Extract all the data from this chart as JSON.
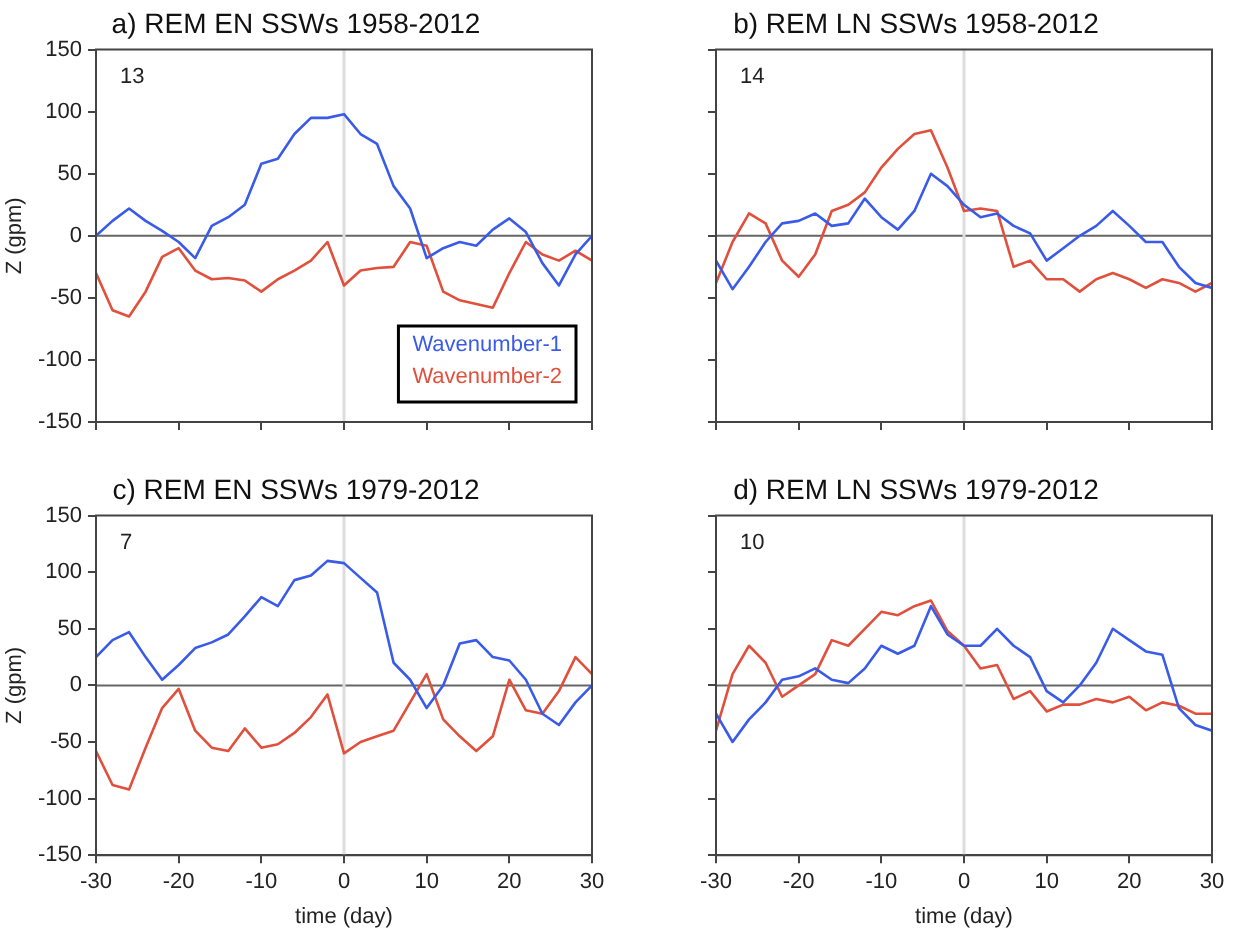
{
  "chart_data": [
    {
      "type": "line",
      "title": "a) REM EN SSWs 1958-2012",
      "ylabel": "Z (gpm)",
      "annotations": [
        "13"
      ],
      "x": [
        -30,
        -28,
        -26,
        -24,
        -22,
        -20,
        -18,
        -16,
        -14,
        -12,
        -10,
        -8,
        -6,
        -4,
        -2,
        0,
        2,
        4,
        6,
        8,
        10,
        12,
        14,
        16,
        18,
        20,
        22,
        24,
        26,
        28,
        30
      ],
      "series": [
        {
          "name": "Wavenumber-1",
          "color": "#3a5be8",
          "values": [
            0,
            12,
            22,
            12,
            4,
            -5,
            -18,
            8,
            15,
            25,
            58,
            62,
            82,
            95,
            95,
            98,
            82,
            74,
            40,
            22,
            -18,
            -10,
            -5,
            -8,
            5,
            14,
            3,
            -22,
            -40,
            -15,
            0
          ]
        },
        {
          "name": "Wavenumber-2",
          "color": "#e0503c",
          "values": [
            -30,
            -60,
            -65,
            -45,
            -17,
            -10,
            -28,
            -35,
            -34,
            -36,
            -45,
            -35,
            -28,
            -20,
            -5,
            -40,
            -28,
            -26,
            -25,
            -5,
            -8,
            -45,
            -52,
            -55,
            -58,
            -30,
            -5,
            -15,
            -20,
            -12,
            -20
          ]
        }
      ],
      "xlim": [
        -30,
        30
      ],
      "xticks": [
        -30,
        -20,
        -10,
        0,
        10,
        20,
        30
      ],
      "ylim": [
        -150,
        150
      ],
      "yticks": [
        -150,
        -100,
        -50,
        0,
        50,
        100,
        150
      ],
      "ref_lines": [
        {
          "axis": "y",
          "value": 0,
          "color": "#666666"
        },
        {
          "axis": "x",
          "value": 0,
          "color": "#dddddd"
        }
      ],
      "legend": "bottom right",
      "tick_labels": "y",
      "grid": false,
      "marker": "none"
    },
    {
      "type": "line",
      "title": "b) REM LN SSWs 1958-2012",
      "annotations": [
        "14"
      ],
      "x": [
        -30,
        -28,
        -26,
        -24,
        -22,
        -20,
        -18,
        -16,
        -14,
        -12,
        -10,
        -8,
        -6,
        -4,
        -2,
        0,
        2,
        4,
        6,
        8,
        10,
        12,
        14,
        16,
        18,
        20,
        22,
        24,
        26,
        28,
        30
      ],
      "series": [
        {
          "color": "#3a5be8",
          "values": [
            -20,
            -43,
            -25,
            -5,
            10,
            12,
            18,
            8,
            10,
            30,
            15,
            5,
            20,
            50,
            40,
            25,
            15,
            18,
            8,
            2,
            -20,
            -10,
            0,
            8,
            20,
            8,
            -5,
            -5,
            -25,
            -38,
            -42
          ]
        },
        {
          "color": "#e0503c",
          "values": [
            -38,
            -5,
            18,
            10,
            -20,
            -33,
            -15,
            20,
            25,
            35,
            55,
            70,
            82,
            85,
            55,
            20,
            22,
            20,
            -25,
            -20,
            -35,
            -35,
            -45,
            -35,
            -30,
            -35,
            -42,
            -35,
            -38,
            -45,
            -38
          ]
        }
      ],
      "xlim": [
        -30,
        30
      ],
      "xticks": [
        -30,
        -20,
        -10,
        0,
        10,
        20,
        30
      ],
      "ylim": [
        -150,
        150
      ],
      "yticks": [
        -150,
        -100,
        -50,
        0,
        50,
        100,
        150
      ],
      "ref_lines": [
        {
          "axis": "y",
          "value": 0,
          "color": "#666666"
        },
        {
          "axis": "x",
          "value": 0,
          "color": "#dddddd"
        }
      ],
      "tick_labels": false,
      "grid": false,
      "marker": "none"
    },
    {
      "type": "line",
      "title": "c) REM EN SSWs 1979-2012",
      "ylabel": "Z (gpm)",
      "xlabel": "time (day)",
      "annotations": [
        "7"
      ],
      "x": [
        -30,
        -28,
        -26,
        -24,
        -22,
        -20,
        -18,
        -16,
        -14,
        -12,
        -10,
        -8,
        -6,
        -4,
        -2,
        0,
        2,
        4,
        6,
        8,
        10,
        12,
        14,
        16,
        18,
        20,
        22,
        24,
        26,
        28,
        30
      ],
      "series": [
        {
          "color": "#3a5be8",
          "values": [
            25,
            40,
            47,
            25,
            5,
            18,
            33,
            38,
            45,
            61,
            78,
            70,
            93,
            97,
            110,
            108,
            95,
            82,
            20,
            5,
            -20,
            0,
            37,
            40,
            25,
            22,
            5,
            -25,
            -35,
            -15,
            0
          ]
        },
        {
          "color": "#e0503c",
          "values": [
            -58,
            -88,
            -92,
            -55,
            -20,
            -3,
            -40,
            -55,
            -58,
            -38,
            -55,
            -52,
            -42,
            -28,
            -8,
            -60,
            -50,
            -45,
            -40,
            -15,
            10,
            -30,
            -45,
            -58,
            -45,
            5,
            -22,
            -25,
            -5,
            25,
            10
          ]
        }
      ],
      "xlim": [
        -30,
        30
      ],
      "xticks": [
        -30,
        -20,
        -10,
        0,
        10,
        20,
        30
      ],
      "ylim": [
        -150,
        150
      ],
      "yticks": [
        -150,
        -100,
        -50,
        0,
        50,
        100,
        150
      ],
      "ref_lines": [
        {
          "axis": "y",
          "value": 0,
          "color": "#666666"
        },
        {
          "axis": "x",
          "value": 0,
          "color": "#dddddd"
        }
      ],
      "grid": false,
      "marker": "none"
    },
    {
      "type": "line",
      "title": "d) REM LN SSWs 1979-2012",
      "xlabel": "time (day)",
      "annotations": [
        "10"
      ],
      "x": [
        -30,
        -28,
        -26,
        -24,
        -22,
        -20,
        -18,
        -16,
        -14,
        -12,
        -10,
        -8,
        -6,
        -4,
        -2,
        0,
        2,
        4,
        6,
        8,
        10,
        12,
        14,
        16,
        18,
        20,
        22,
        24,
        26,
        28,
        30
      ],
      "series": [
        {
          "color": "#3a5be8",
          "values": [
            -25,
            -50,
            -30,
            -15,
            5,
            8,
            15,
            5,
            2,
            15,
            35,
            28,
            35,
            70,
            45,
            35,
            35,
            50,
            35,
            25,
            -5,
            -15,
            0,
            20,
            50,
            40,
            30,
            27,
            -20,
            -35,
            -40
          ]
        },
        {
          "color": "#e0503c",
          "values": [
            -40,
            10,
            35,
            20,
            -10,
            0,
            10,
            40,
            35,
            50,
            65,
            62,
            70,
            75,
            48,
            35,
            15,
            18,
            -12,
            -5,
            -23,
            -17,
            -17,
            -12,
            -15,
            -10,
            -22,
            -15,
            -18,
            -25,
            -25
          ]
        }
      ],
      "xlim": [
        -30,
        30
      ],
      "xticks": [
        -30,
        -20,
        -10,
        0,
        10,
        20,
        30
      ],
      "ylim": [
        -150,
        150
      ],
      "yticks": [
        -150,
        -100,
        -50,
        0,
        50,
        100,
        150
      ],
      "ref_lines": [
        {
          "axis": "y",
          "value": 0,
          "color": "#666666"
        },
        {
          "axis": "x",
          "value": 0,
          "color": "#dddddd"
        }
      ],
      "tick_labels": "x",
      "grid": false,
      "marker": "none"
    }
  ]
}
